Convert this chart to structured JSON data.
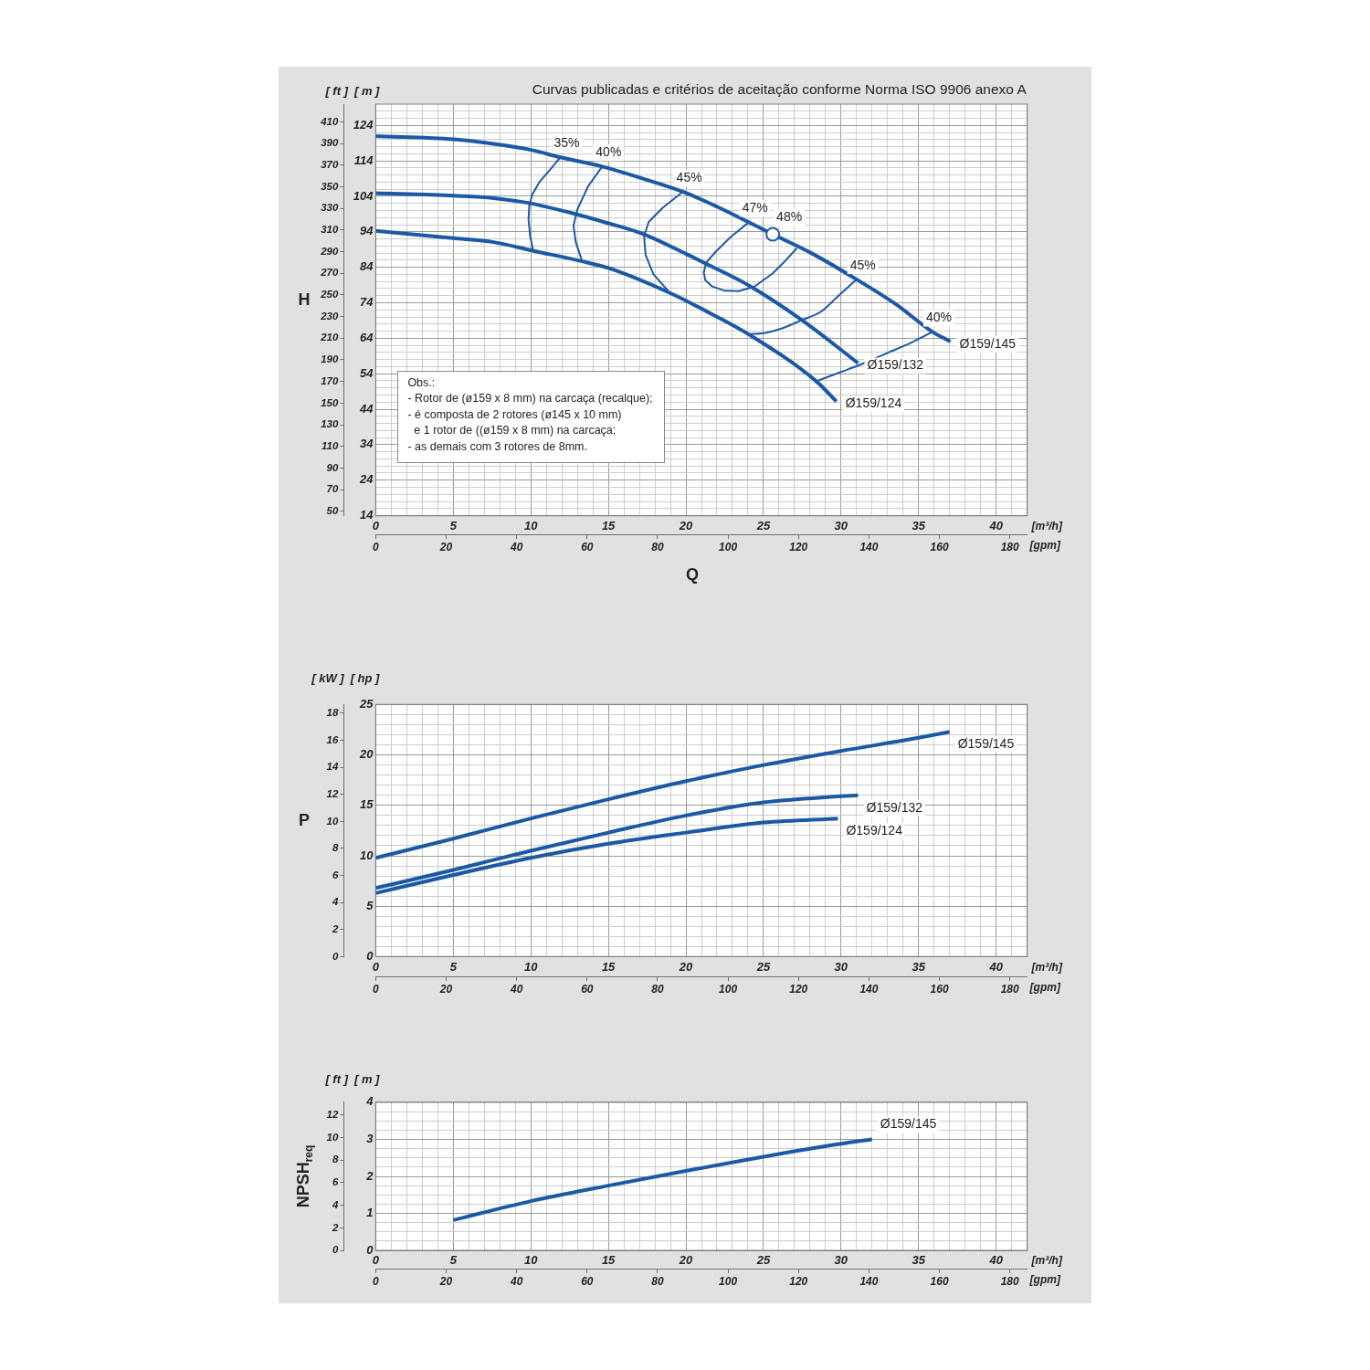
{
  "chart_data": [
    {
      "type": "line",
      "title": "Curvas publicadas e critérios de aceitação conforme Norma ISO 9906 anexo A",
      "xlabel": "[m³/h]",
      "x2label": "[gpm]",
      "ylabel": "[ m ]",
      "y2label": "[ ft ]",
      "annotations": [
        "H",
        "Q",
        "Obs.:\n- Rotor de (ø159 x 8 mm) na carcaça (recalque);\n- é composta de 2 rotores (ø145 x 10 mm)\n  e 1 rotor de ((ø159 x 8 mm) na carcaça;\n- as demais com 3 rotores de 8mm."
      ],
      "xlim": [
        0,
        42
      ],
      "xticks": [
        0,
        {
          "value": 1,
          "label": null
        },
        {
          "value": 2,
          "label": null
        },
        {
          "value": 3,
          "label": null
        },
        {
          "value": 4,
          "label": null
        },
        5,
        {
          "value": 6,
          "label": null
        },
        {
          "value": 7,
          "label": null
        },
        {
          "value": 8,
          "label": null
        },
        {
          "value": 9,
          "label": null
        },
        10,
        {
          "value": 11,
          "label": null
        },
        {
          "value": 12,
          "label": null
        },
        {
          "value": 13,
          "label": null
        },
        {
          "value": 14,
          "label": null
        },
        15,
        {
          "value": 16,
          "label": null
        },
        {
          "value": 17,
          "label": null
        },
        {
          "value": 18,
          "label": null
        },
        {
          "value": 19,
          "label": null
        },
        20,
        {
          "value": 21,
          "label": null
        },
        {
          "value": 22,
          "label": null
        },
        {
          "value": 23,
          "label": null
        },
        {
          "value": 24,
          "label": null
        },
        25,
        {
          "value": 26,
          "label": null
        },
        {
          "value": 27,
          "label": null
        },
        {
          "value": 28,
          "label": null
        },
        {
          "value": 29,
          "label": null
        },
        30,
        {
          "value": 31,
          "label": null
        },
        {
          "value": 32,
          "label": null
        },
        {
          "value": 33,
          "label": null
        },
        {
          "value": 34,
          "label": null
        },
        35,
        {
          "value": 36,
          "label": null
        },
        {
          "value": 37,
          "label": null
        },
        {
          "value": 38,
          "label": null
        },
        {
          "value": 39,
          "label": null
        },
        40,
        {
          "value": 41,
          "label": null
        }
      ],
      "x2lim": [
        0,
        184.9
      ],
      "x2ticks": [
        0,
        20,
        40,
        60,
        80,
        100,
        120,
        140,
        160,
        180
      ],
      "ylim": [
        14,
        130
      ],
      "yticks": [
        14,
        {
          "value": 16,
          "label": null
        },
        {
          "value": 18,
          "label": null
        },
        {
          "value": 20,
          "label": null
        },
        {
          "value": 22,
          "label": null
        },
        24,
        {
          "value": 26,
          "label": null
        },
        {
          "value": 28,
          "label": null
        },
        {
          "value": 30,
          "label": null
        },
        {
          "value": 32,
          "label": null
        },
        34,
        {
          "value": 36,
          "label": null
        },
        {
          "value": 38,
          "label": null
        },
        {
          "value": 40,
          "label": null
        },
        {
          "value": 42,
          "label": null
        },
        44,
        {
          "value": 46,
          "label": null
        },
        {
          "value": 48,
          "label": null
        },
        {
          "value": 50,
          "label": null
        },
        {
          "value": 52,
          "label": null
        },
        54,
        {
          "value": 56,
          "label": null
        },
        {
          "value": 58,
          "label": null
        },
        {
          "value": 60,
          "label": null
        },
        {
          "value": 62,
          "label": null
        },
        64,
        {
          "value": 66,
          "label": null
        },
        {
          "value": 68,
          "label": null
        },
        {
          "value": 70,
          "label": null
        },
        {
          "value": 72,
          "label": null
        },
        74,
        {
          "value": 76,
          "label": null
        },
        {
          "value": 78,
          "label": null
        },
        {
          "value": 80,
          "label": null
        },
        {
          "value": 82,
          "label": null
        },
        84,
        {
          "value": 86,
          "label": null
        },
        {
          "value": 88,
          "label": null
        },
        {
          "value": 90,
          "label": null
        },
        {
          "value": 92,
          "label": null
        },
        94,
        {
          "value": 96,
          "label": null
        },
        {
          "value": 98,
          "label": null
        },
        {
          "value": 100,
          "label": null
        },
        {
          "value": 102,
          "label": null
        },
        104,
        {
          "value": 106,
          "label": null
        },
        {
          "value": 108,
          "label": null
        },
        {
          "value": 110,
          "label": null
        },
        {
          "value": 112,
          "label": null
        },
        114,
        {
          "value": 116,
          "label": null
        },
        {
          "value": 118,
          "label": null
        },
        {
          "value": 120,
          "label": null
        },
        {
          "value": 122,
          "label": null
        },
        124,
        {
          "value": 126,
          "label": null
        },
        {
          "value": 128,
          "label": null
        }
      ],
      "y2lim": [
        45.9,
        426.5
      ],
      "y2ticks": [
        50,
        70,
        90,
        110,
        130,
        150,
        170,
        190,
        210,
        230,
        250,
        270,
        290,
        310,
        330,
        350,
        370,
        390,
        410
      ],
      "grid": true,
      "series": [
        {
          "name": "Ø159/145",
          "color": "#1b59a6",
          "x": [
            0,
            5,
            7.6,
            10,
            11.9,
            14.6,
            17,
            19.8,
            22,
            24.05,
            25.6,
            28,
            31,
            33.5,
            35.9,
            37.05
          ],
          "values": [
            121.0,
            120.1,
            118.8,
            117.1,
            115.0,
            112.4,
            109.3,
            105.3,
            101.1,
            96.7,
            93.3,
            88.2,
            80.6,
            73.7,
            65.8,
            63.1
          ]
        },
        {
          "name": "Ø159/132",
          "color": "#1b59a6",
          "x": [
            0,
            5,
            7.6,
            9.9,
            12.8,
            15,
            17.3,
            20,
            21.3,
            24.05,
            27.45,
            31.1
          ],
          "values": [
            104.9,
            104.2,
            103.5,
            102.1,
            99.1,
            96.4,
            93.3,
            87.8,
            85.0,
            78.9,
            69.2,
            57.0
          ]
        },
        {
          "name": "Ø159/124",
          "color": "#1b59a6",
          "x": [
            0,
            5,
            7.6,
            10.1,
            13.3,
            15,
            19.0,
            21.5,
            24.05,
            28.4,
            29.7
          ],
          "values": [
            94.3,
            92.2,
            91.1,
            88.7,
            85.7,
            83.8,
            76.7,
            71.2,
            65.1,
            51.9,
            46.2
          ]
        },
        {
          "name": "35%",
          "color": "#1b59a6",
          "x": [
            10.15,
            9.95,
            9.85,
            9.9,
            10.1,
            10.55,
            11.2,
            11.9
          ],
          "values": [
            88.7,
            93.0,
            97.5,
            101.5,
            104.6,
            108.0,
            111.3,
            115.0
          ]
        },
        {
          "name": "40%",
          "color": "#1b59a6",
          "x": [
            13.3,
            12.9,
            12.75,
            13.0,
            13.7,
            14.6
          ],
          "values": [
            85.8,
            91.1,
            95.7,
            100.3,
            106.9,
            112.4
          ]
        },
        {
          "name": "45%",
          "color": "#1b59a6",
          "x": [
            19.0,
            17.9,
            17.4,
            17.3,
            17.6,
            18.5,
            19.8
          ],
          "values": [
            76.6,
            82.1,
            87.5,
            92.8,
            96.8,
            100.8,
            105.3
          ]
        },
        {
          "name": "47%",
          "color": "#1b59a6",
          "x": [
            27.15,
            26.4,
            25.6,
            24.4,
            23.4,
            22.5,
            21.7,
            21.25,
            21.15,
            21.3,
            21.9,
            22.9,
            24.05
          ],
          "values": [
            89.4,
            85.8,
            82.3,
            78.5,
            77.3,
            77.4,
            78.6,
            80.4,
            82.5,
            85.3,
            88.3,
            92.6,
            96.7
          ]
        },
        {
          "name": "48%",
          "type": "scatter",
          "marker": "circle",
          "color": "#1b59a6",
          "x": [
            25.6
          ],
          "values": [
            93.3
          ]
        },
        {
          "name": "45%",
          "color": "#1b59a6",
          "x": [
            24.0,
            25.2,
            26.2,
            27.45,
            28.7,
            29.7,
            31.0
          ],
          "values": [
            65.1,
            65.6,
            66.8,
            69.1,
            71.5,
            75.4,
            80.6
          ]
        },
        {
          "name": "40%",
          "color": "#1b59a6",
          "x": [
            28.4,
            30.0,
            31.1,
            33.0,
            34.5,
            35.9
          ],
          "values": [
            51.9,
            54.5,
            56.3,
            59.9,
            62.7,
            65.8
          ]
        }
      ]
    },
    {
      "type": "line",
      "xlabel": "[m³/h]",
      "x2label": "[gpm]",
      "ylabel": "[ hp ]",
      "y2label": "[ kW ]",
      "annotations": [
        "P"
      ],
      "xlim": [
        0,
        42
      ],
      "xticks": [
        0,
        {
          "value": 1,
          "label": null
        },
        {
          "value": 2,
          "label": null
        },
        {
          "value": 3,
          "label": null
        },
        {
          "value": 4,
          "label": null
        },
        5,
        {
          "value": 6,
          "label": null
        },
        {
          "value": 7,
          "label": null
        },
        {
          "value": 8,
          "label": null
        },
        {
          "value": 9,
          "label": null
        },
        10,
        {
          "value": 11,
          "label": null
        },
        {
          "value": 12,
          "label": null
        },
        {
          "value": 13,
          "label": null
        },
        {
          "value": 14,
          "label": null
        },
        15,
        {
          "value": 16,
          "label": null
        },
        {
          "value": 17,
          "label": null
        },
        {
          "value": 18,
          "label": null
        },
        {
          "value": 19,
          "label": null
        },
        20,
        {
          "value": 21,
          "label": null
        },
        {
          "value": 22,
          "label": null
        },
        {
          "value": 23,
          "label": null
        },
        {
          "value": 24,
          "label": null
        },
        25,
        {
          "value": 26,
          "label": null
        },
        {
          "value": 27,
          "label": null
        },
        {
          "value": 28,
          "label": null
        },
        {
          "value": 29,
          "label": null
        },
        30,
        {
          "value": 31,
          "label": null
        },
        {
          "value": 32,
          "label": null
        },
        {
          "value": 33,
          "label": null
        },
        {
          "value": 34,
          "label": null
        },
        35,
        {
          "value": 36,
          "label": null
        },
        {
          "value": 37,
          "label": null
        },
        {
          "value": 38,
          "label": null
        },
        {
          "value": 39,
          "label": null
        },
        40,
        {
          "value": 41,
          "label": null
        }
      ],
      "x2lim": [
        0,
        184.9
      ],
      "x2ticks": [
        0,
        20,
        40,
        60,
        80,
        100,
        120,
        140,
        160,
        180
      ],
      "ylim": [
        0,
        25
      ],
      "yticks": [
        0,
        {
          "value": 1,
          "label": null
        },
        {
          "value": 2,
          "label": null
        },
        {
          "value": 3,
          "label": null
        },
        {
          "value": 4,
          "label": null
        },
        5,
        {
          "value": 6,
          "label": null
        },
        {
          "value": 7,
          "label": null
        },
        {
          "value": 8,
          "label": null
        },
        {
          "value": 9,
          "label": null
        },
        10,
        {
          "value": 11,
          "label": null
        },
        {
          "value": 12,
          "label": null
        },
        {
          "value": 13,
          "label": null
        },
        {
          "value": 14,
          "label": null
        },
        15,
        {
          "value": 16,
          "label": null
        },
        {
          "value": 17,
          "label": null
        },
        {
          "value": 18,
          "label": null
        },
        {
          "value": 19,
          "label": null
        },
        20,
        {
          "value": 21,
          "label": null
        },
        {
          "value": 22,
          "label": null
        },
        {
          "value": 23,
          "label": null
        },
        {
          "value": 24,
          "label": null
        },
        25
      ],
      "y2lim": [
        0,
        18.64
      ],
      "y2ticks": [
        0,
        2,
        4,
        6,
        8,
        10,
        12,
        14,
        16,
        18
      ],
      "grid": true,
      "series": [
        {
          "name": "Ø159/145",
          "color": "#1b59a6",
          "x": [
            0,
            5,
            10,
            15,
            20,
            25,
            30,
            35,
            37.0
          ],
          "values": [
            9.8,
            11.7,
            13.7,
            15.6,
            17.4,
            19.0,
            20.4,
            21.7,
            22.3
          ]
        },
        {
          "name": "Ø159/132",
          "color": "#1b59a6",
          "x": [
            0,
            5,
            10,
            15,
            20,
            25,
            30,
            31.1
          ],
          "values": [
            6.8,
            8.6,
            10.5,
            12.3,
            14.0,
            15.3,
            15.9,
            16.0
          ]
        },
        {
          "name": "Ø159/124",
          "color": "#1b59a6",
          "x": [
            0,
            5,
            10,
            15,
            20,
            25,
            29.8
          ],
          "values": [
            6.3,
            8.1,
            9.8,
            11.2,
            12.3,
            13.3,
            13.7
          ]
        }
      ]
    },
    {
      "type": "line",
      "xlabel": "[m³/h]",
      "x2label": "[gpm]",
      "ylabel": "[ m ]",
      "y2label": "[ ft ]",
      "annotations": [
        "NPSH$_{req}$"
      ],
      "xlim": [
        0,
        42
      ],
      "xticks": [
        0,
        {
          "value": 1,
          "label": null
        },
        {
          "value": 2,
          "label": null
        },
        {
          "value": 3,
          "label": null
        },
        {
          "value": 4,
          "label": null
        },
        5,
        {
          "value": 6,
          "label": null
        },
        {
          "value": 7,
          "label": null
        },
        {
          "value": 8,
          "label": null
        },
        {
          "value": 9,
          "label": null
        },
        10,
        {
          "value": 11,
          "label": null
        },
        {
          "value": 12,
          "label": null
        },
        {
          "value": 13,
          "label": null
        },
        {
          "value": 14,
          "label": null
        },
        15,
        {
          "value": 16,
          "label": null
        },
        {
          "value": 17,
          "label": null
        },
        {
          "value": 18,
          "label": null
        },
        {
          "value": 19,
          "label": null
        },
        20,
        {
          "value": 21,
          "label": null
        },
        {
          "value": 22,
          "label": null
        },
        {
          "value": 23,
          "label": null
        },
        {
          "value": 24,
          "label": null
        },
        25,
        {
          "value": 26,
          "label": null
        },
        {
          "value": 27,
          "label": null
        },
        {
          "value": 28,
          "label": null
        },
        {
          "value": 29,
          "label": null
        },
        30,
        {
          "value": 31,
          "label": null
        },
        {
          "value": 32,
          "label": null
        },
        {
          "value": 33,
          "label": null
        },
        {
          "value": 34,
          "label": null
        },
        35,
        {
          "value": 36,
          "label": null
        },
        {
          "value": 37,
          "label": null
        },
        {
          "value": 38,
          "label": null
        },
        {
          "value": 39,
          "label": null
        },
        40,
        {
          "value": 41,
          "label": null
        }
      ],
      "x2lim": [
        0,
        184.9
      ],
      "x2ticks": [
        0,
        20,
        40,
        60,
        80,
        100,
        120,
        140,
        160,
        180
      ],
      "ylim": [
        0,
        4
      ],
      "yticks": [
        0,
        {
          "value": 0.25,
          "label": null
        },
        {
          "value": 0.5,
          "label": null
        },
        {
          "value": 0.75,
          "label": null
        },
        1,
        {
          "value": 1.25,
          "label": null
        },
        {
          "value": 1.5,
          "label": null
        },
        {
          "value": 1.75,
          "label": null
        },
        2,
        {
          "value": 2.25,
          "label": null
        },
        {
          "value": 2.5,
          "label": null
        },
        {
          "value": 2.75,
          "label": null
        },
        3,
        {
          "value": 3.25,
          "label": null
        },
        {
          "value": 3.5,
          "label": null
        },
        {
          "value": 3.75,
          "label": null
        },
        4
      ],
      "y2lim": [
        0,
        13.12
      ],
      "y2ticks": [
        0,
        2,
        4,
        6,
        8,
        10,
        12
      ],
      "grid": true,
      "series": [
        {
          "name": "Ø159/145",
          "color": "#1b59a6",
          "x": [
            5,
            10,
            15,
            20,
            25,
            30,
            32
          ],
          "values": [
            0.82,
            1.33,
            1.75,
            2.15,
            2.53,
            2.88,
            3.0
          ]
        }
      ]
    }
  ]
}
